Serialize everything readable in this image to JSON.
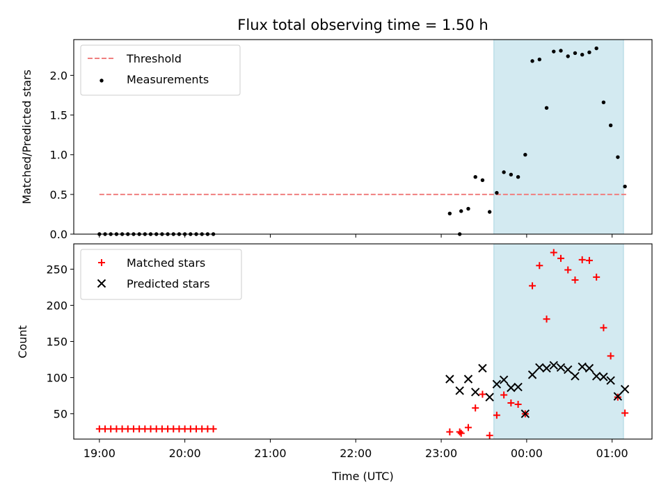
{
  "chart_data": [
    {
      "type": "scatter",
      "title": "Flux total observing time = 1.50 h",
      "ylabel": "Matched/Predicted stars",
      "xlim": [
        "18:42",
        "01:28"
      ],
      "ylim": [
        0,
        2.45
      ],
      "yticks": [
        "0.0",
        "0.5",
        "1.0",
        "1.5",
        "2.0"
      ],
      "yticks_values": [
        0,
        0.5,
        1.0,
        1.5,
        2.0
      ],
      "xticks_values": [
        "19:00",
        "20:00",
        "21:00",
        "22:00",
        "23:00",
        "00:00",
        "01:00"
      ],
      "grid": false,
      "legend_position": "top-left",
      "shaded_span": {
        "start": "23:37",
        "end": "01:08",
        "color": "#d3eaf1"
      },
      "threshold": {
        "name": "Threshold",
        "value": 0.5,
        "start": "19:00",
        "end": "01:10",
        "color": "#f07f7f"
      },
      "series": [
        {
          "name": "Measurements",
          "marker": "dot",
          "color": "#000000",
          "x": [
            "19:00",
            "19:04",
            "19:08",
            "19:12",
            "19:16",
            "19:20",
            "19:24",
            "19:28",
            "19:32",
            "19:36",
            "19:40",
            "19:44",
            "19:48",
            "19:52",
            "19:56",
            "20:00",
            "20:04",
            "20:08",
            "20:12",
            "20:16",
            "20:20",
            "23:06",
            "23:13",
            "23:14",
            "23:19",
            "23:24",
            "23:29",
            "23:34",
            "23:39",
            "23:44",
            "23:49",
            "23:54",
            "23:59",
            "00:04",
            "00:09",
            "00:14",
            "00:19",
            "00:24",
            "00:29",
            "00:34",
            "00:39",
            "00:44",
            "00:49",
            "00:54",
            "00:59",
            "01:04",
            "01:09"
          ],
          "y": [
            0,
            0,
            0,
            0,
            0,
            0,
            0,
            0,
            0,
            0,
            0,
            0,
            0,
            0,
            0,
            0,
            0,
            0,
            0,
            0,
            0,
            0.26,
            0.0,
            0.29,
            0.32,
            0.72,
            0.68,
            0.28,
            0.52,
            0.78,
            0.75,
            0.72,
            1.0,
            2.18,
            2.2,
            1.59,
            2.3,
            2.31,
            2.24,
            2.28,
            2.26,
            2.29,
            2.34,
            1.66,
            1.37,
            0.97,
            0.6
          ]
        }
      ]
    },
    {
      "type": "scatter",
      "xlabel": "Time (UTC)",
      "ylabel": "Count",
      "xlim": [
        "18:42",
        "01:28"
      ],
      "ylim": [
        15,
        285
      ],
      "yticks": [
        "50",
        "100",
        "150",
        "200",
        "250"
      ],
      "yticks_values": [
        50,
        100,
        150,
        200,
        250
      ],
      "xticks": [
        "19:00",
        "20:00",
        "21:00",
        "22:00",
        "23:00",
        "00:00",
        "01:00"
      ],
      "xticks_values": [
        "19:00",
        "20:00",
        "21:00",
        "22:00",
        "23:00",
        "00:00",
        "01:00"
      ],
      "grid": false,
      "legend_position": "top-left",
      "shaded_span": {
        "start": "23:37",
        "end": "01:08",
        "color": "#d3eaf1"
      },
      "series": [
        {
          "name": "Matched stars",
          "marker": "plus",
          "color": "#ff0000",
          "x": [
            "19:00",
            "19:04",
            "19:08",
            "19:12",
            "19:16",
            "19:20",
            "19:24",
            "19:28",
            "19:32",
            "19:36",
            "19:40",
            "19:44",
            "19:48",
            "19:52",
            "19:56",
            "20:00",
            "20:04",
            "20:08",
            "20:12",
            "20:16",
            "20:20",
            "23:06",
            "23:13",
            "23:14",
            "23:19",
            "23:24",
            "23:29",
            "23:34",
            "23:39",
            "23:44",
            "23:49",
            "23:54",
            "23:59",
            "00:04",
            "00:09",
            "00:14",
            "00:19",
            "00:24",
            "00:29",
            "00:34",
            "00:39",
            "00:44",
            "00:49",
            "00:54",
            "00:59",
            "01:04",
            "01:09"
          ],
          "y": [
            29,
            29,
            29,
            29,
            29,
            29,
            29,
            29,
            29,
            29,
            29,
            29,
            29,
            29,
            29,
            29,
            29,
            29,
            29,
            29,
            29,
            25,
            25,
            23,
            31,
            58,
            77,
            20,
            48,
            76,
            65,
            63,
            50,
            227,
            255,
            181,
            273,
            265,
            249,
            235,
            263,
            262,
            239,
            169,
            130,
            73,
            51
          ]
        },
        {
          "name": "Predicted stars",
          "marker": "x",
          "color": "#000000",
          "x": [
            "23:06",
            "23:13",
            "23:19",
            "23:24",
            "23:29",
            "23:34",
            "23:39",
            "23:44",
            "23:49",
            "23:54",
            "23:59",
            "00:04",
            "00:09",
            "00:14",
            "00:19",
            "00:24",
            "00:29",
            "00:34",
            "00:39",
            "00:44",
            "00:49",
            "00:54",
            "00:59",
            "01:04",
            "01:09"
          ],
          "y": [
            98,
            82,
            98,
            80,
            113,
            73,
            91,
            97,
            86,
            87,
            50,
            104,
            114,
            113,
            117,
            114,
            111,
            102,
            115,
            113,
            102,
            101,
            96,
            74,
            84
          ]
        }
      ]
    }
  ]
}
